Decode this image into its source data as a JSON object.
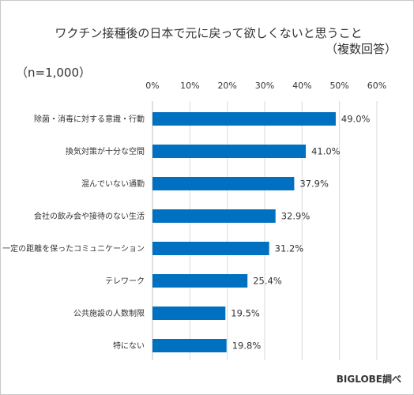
{
  "chart_data": {
    "type": "bar",
    "orientation": "horizontal",
    "title": "ワクチン接種後の日本で元に戻って欲しくないと思うこと",
    "subtitle": "（複数回答）",
    "sample": "（n=1,000）",
    "categories": [
      "除菌・消毒に対する意識・行動",
      "換気対策が十分な空間",
      "混んでいない通勤",
      "会社の飲み会や接待のない生活",
      "一定の距離を保ったコミュニケーション",
      "テレワーク",
      "公共施設の人数制限",
      "特にない"
    ],
    "values": [
      49.0,
      41.0,
      37.9,
      32.9,
      31.2,
      25.4,
      19.5,
      19.8
    ],
    "data_labels": [
      "49.0%",
      "41.0%",
      "37.9%",
      "32.9%",
      "31.2%",
      "25.4%",
      "19.5%",
      "19.8%"
    ],
    "x_ticks": [
      "0%",
      "10%",
      "20%",
      "30%",
      "40%",
      "50%",
      "60%"
    ],
    "xlim": [
      0,
      60
    ],
    "grid": true,
    "bar_color": "#0070c0",
    "grid_color": "#d9d9d9"
  },
  "credit": "BIGLOBE調べ"
}
